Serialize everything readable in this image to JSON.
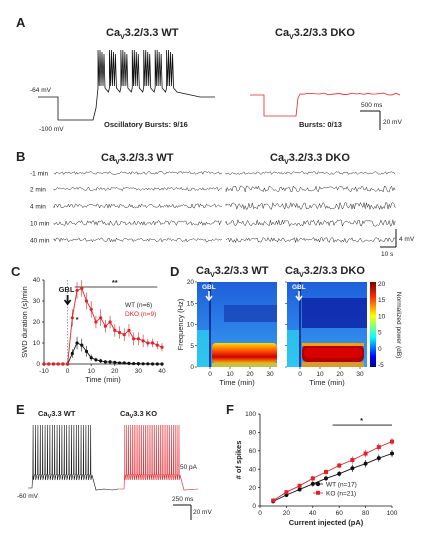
{
  "panels": {
    "A": {
      "letter": "A",
      "wt_title": {
        "pre": "Ca",
        "sub": "V",
        "post": "3.2/3.3 WT"
      },
      "dko_title": {
        "pre": "Ca",
        "sub": "V",
        "post": "3.2/3.3 DKO"
      },
      "rest_label": "-64 mV",
      "hyper_label": "-100 mV",
      "wt_bursts": "Oscillatory Bursts: 9/16",
      "dko_bursts": "Bursts: 0/13",
      "scale_time": "500 ms",
      "scale_volt": "20 mV",
      "wt_spike_bursts": 7
    },
    "B": {
      "letter": "B",
      "wt_title": {
        "pre": "Ca",
        "sub": "V",
        "post": "3.2/3.3 WT"
      },
      "dko_title": {
        "pre": "Ca",
        "sub": "V",
        "post": "3.2/3.3 DKO"
      },
      "row_labels": [
        "-1 min",
        "2 min",
        "4 min",
        "10 min",
        "40 min"
      ],
      "scale_volt": "4 mV",
      "scale_time": "10 s"
    },
    "C": {
      "letter": "C",
      "gbl_label": "GBL",
      "sig_main": "**",
      "sig_minor": "*",
      "legend_wt": "WT (n=6)",
      "legend_dko": "DKO (n=9)"
    },
    "D": {
      "letter": "D",
      "wt_title": {
        "pre": "Ca",
        "sub": "V",
        "post": "3.2/3.3 WT"
      },
      "dko_title": {
        "pre": "Ca",
        "sub": "V",
        "post": "3.2/3.3 DKO"
      },
      "gbl_label": "GBL",
      "y_ticks": [
        "0",
        "5",
        "10",
        "15",
        "20"
      ],
      "x_ticks": [
        "0",
        "10",
        "20",
        "30"
      ],
      "ylabel": "Frequency (Hz)",
      "xlabel": "Time (min)",
      "cbar_ticks": [
        "20",
        "15",
        "10",
        "5",
        "0",
        "-5"
      ],
      "cbar_label": "Normalized power (dB)"
    },
    "E": {
      "letter": "E",
      "wt_title": {
        "pre": "Ca",
        "sub": "V",
        "post": "3.3 WT"
      },
      "ko_title": {
        "pre": "Ca",
        "sub": "V",
        "post": "3.3 KO"
      },
      "rest_label": "-60 mV",
      "step_label": "50 pA",
      "scale_time": "250 ms",
      "scale_volt": "20 mV",
      "wt_spikes": 25,
      "ko_spikes": 30
    },
    "F": {
      "letter": "F",
      "legend_wt": "WT (n=17)",
      "legend_ko": "KO (n=21)",
      "sig": "*"
    }
  },
  "chart_data": [
    {
      "type": "line",
      "panel": "C",
      "xlabel": "Time (min)",
      "ylabel": "SWD duration (s)/min",
      "xlim": [
        -10,
        40
      ],
      "ylim": [
        0,
        40
      ],
      "x_ticks": [
        -10,
        0,
        10,
        20,
        30,
        40
      ],
      "y_ticks": [
        0,
        10,
        20,
        30,
        40
      ],
      "legend": "top-right",
      "series": [
        {
          "name": "WT (n=6)",
          "color": "#111111",
          "x": [
            -10,
            -8,
            -6,
            -4,
            -2,
            0,
            2,
            4,
            6,
            8,
            10,
            12,
            14,
            16,
            18,
            20,
            22,
            24,
            26,
            28,
            30,
            32,
            34,
            36,
            38,
            40
          ],
          "y": [
            0,
            0,
            0,
            0,
            0,
            0,
            5,
            10,
            9,
            6,
            3,
            2,
            1.5,
            1,
            1,
            0.8,
            0.5,
            0.5,
            0.3,
            0.2,
            0.2,
            0.1,
            0.1,
            0,
            0,
            0
          ],
          "err": [
            0,
            0,
            0,
            0,
            0,
            0,
            2,
            3,
            3,
            2.5,
            1.5,
            1,
            1,
            0.8,
            0.8,
            0.6,
            0.5,
            0.5,
            0.3,
            0.3,
            0.3,
            0.2,
            0.2,
            0,
            0,
            0
          ]
        },
        {
          "name": "DKO (n=9)",
          "color": "#e0232b",
          "x": [
            -10,
            -8,
            -6,
            -4,
            -2,
            0,
            2,
            4,
            6,
            8,
            10,
            12,
            14,
            16,
            18,
            20,
            22,
            24,
            26,
            28,
            30,
            32,
            34,
            36,
            38,
            40
          ],
          "y": [
            0,
            0,
            0,
            0,
            0,
            0,
            22,
            35,
            36,
            30,
            26,
            20,
            22,
            18,
            20,
            16,
            15,
            14,
            16,
            12,
            12,
            11,
            10,
            10,
            9,
            8
          ],
          "err": [
            0,
            0,
            0,
            0,
            0,
            0,
            4,
            4,
            4,
            4,
            4,
            3,
            4,
            3,
            3,
            3,
            3,
            3,
            3,
            3,
            3,
            3,
            2,
            2,
            2,
            2
          ]
        }
      ]
    },
    {
      "type": "line",
      "panel": "F",
      "xlabel": "Current injected (pA)",
      "ylabel": "# of spikes",
      "xlim": [
        0,
        100
      ],
      "ylim": [
        0,
        100
      ],
      "x_ticks": [
        0,
        20,
        40,
        60,
        80,
        100
      ],
      "y_ticks": [
        0,
        20,
        40,
        60,
        80,
        100
      ],
      "legend": "bottom-right",
      "series": [
        {
          "name": "WT (n=17)",
          "color": "#111111",
          "x": [
            10,
            20,
            30,
            40,
            50,
            60,
            70,
            80,
            90,
            100
          ],
          "y": [
            5,
            12,
            18,
            24,
            30,
            35,
            41,
            46,
            52,
            57
          ],
          "err": [
            1,
            2,
            2,
            3,
            3,
            3,
            4,
            4,
            4,
            4
          ]
        },
        {
          "name": "KO (n=21)",
          "color": "#e0232b",
          "x": [
            10,
            20,
            30,
            40,
            50,
            60,
            70,
            80,
            90,
            100
          ],
          "y": [
            6,
            15,
            22,
            30,
            37,
            44,
            50,
            57,
            64,
            70
          ],
          "err": [
            1,
            2,
            2,
            3,
            3,
            3,
            4,
            4,
            4,
            4
          ]
        }
      ]
    }
  ]
}
